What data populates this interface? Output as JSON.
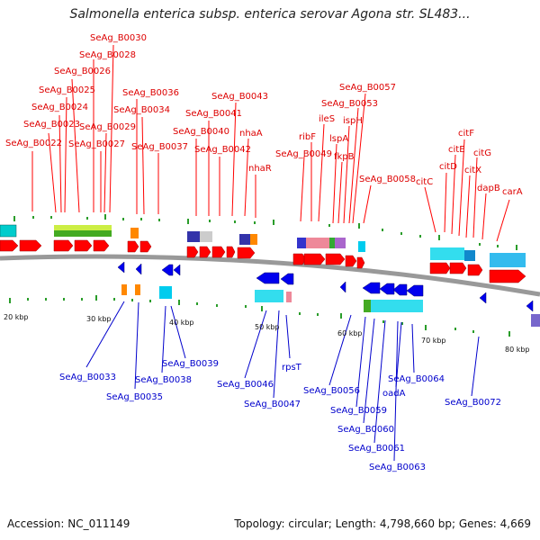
{
  "title": "Salmonella enterica subsp. enterica serovar Agona str. SL483...",
  "accession": "Accession: NC_011149",
  "summary": "Topology: circular; Length: 4,798,660 bp; Genes: 4,669",
  "colors": {
    "forward": "#ff0000",
    "reverse": "#0000ff",
    "backbone": "#999999"
  },
  "scale_labels": [
    "20 kbp",
    "30 kbp",
    "40 kbp",
    "50 kbp",
    "60 kbp",
    "70 kbp",
    "80 kbp"
  ],
  "top_labels": [
    "SeAg_B0030",
    "SeAg_B0028",
    "SeAg_B0026",
    "SeAg_B0025",
    "SeAg_B0024",
    "SeAg_B0023",
    "SeAg_B0022",
    "SeAg_B0029",
    "SeAg_B0027",
    "SeAg_B0036",
    "SeAg_B0034",
    "SeAg_B0037",
    "SeAg_B0043",
    "SeAg_B0041",
    "SeAg_B0040",
    "SeAg_B0042",
    "nhaA",
    "nhaR",
    "SeAg_B0057",
    "SeAg_B0053",
    "ileS",
    "ispH",
    "ribF",
    "lspA",
    "SeAg_B0049",
    "fkpB",
    "SeAg_B0058",
    "citF",
    "citE",
    "citG",
    "citD",
    "citX",
    "citC",
    "dapB",
    "carA"
  ],
  "bottom_labels": [
    "SeAg_B0033",
    "SeAg_B0035",
    "SeAg_B0038",
    "SeAg_B0039",
    "SeAg_B0046",
    "SeAg_B0047",
    "rpsT",
    "SeAg_B0056",
    "SeAg_B0059",
    "SeAg_B0060",
    "SeAg_B0061",
    "SeAg_B0063",
    "oadA",
    "SeAg_B0064",
    "SeAg_B0072"
  ]
}
